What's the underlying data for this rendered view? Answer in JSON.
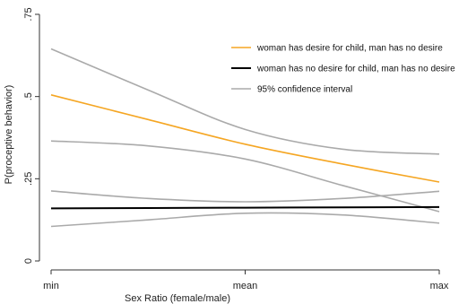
{
  "chart_data": {
    "type": "line",
    "title": "",
    "xlabel": "Sex Ratio (female/male)",
    "ylabel": "P(proceptive behavior)",
    "x": [
      0,
      0.25,
      0.5,
      0.75,
      1
    ],
    "xtick_labels": [
      "min",
      "mean",
      "max"
    ],
    "xtick_values": [
      0,
      0.5,
      1
    ],
    "ytick_labels": [
      "0",
      ".25",
      ".5",
      ".75"
    ],
    "ytick_values": [
      0,
      0.25,
      0.5,
      0.75
    ],
    "ylim": [
      0,
      0.75
    ],
    "xlim": [
      0,
      1
    ],
    "grid": false,
    "legend_position": "top-right",
    "series": [
      {
        "name": "woman has desire for child, man has no desire",
        "color": "#f5a623",
        "width": 1.6,
        "values": [
          0.505,
          0.43,
          0.355,
          0.295,
          0.24
        ]
      },
      {
        "name": "woman has no desire for child, man has no desire",
        "color": "#000000",
        "width": 2,
        "values": [
          0.16,
          0.161,
          0.162,
          0.163,
          0.164
        ]
      },
      {
        "name": "95% confidence interval",
        "color": "#aaaaaa",
        "width": 1.6,
        "values": [
          0.645,
          0.52,
          0.4,
          0.34,
          0.325
        ]
      },
      {
        "name": "",
        "color": "#aaaaaa",
        "width": 1.6,
        "values": [
          0.365,
          0.35,
          0.31,
          0.23,
          0.15
        ]
      },
      {
        "name": "",
        "color": "#aaaaaa",
        "width": 1.6,
        "values": [
          0.213,
          0.19,
          0.18,
          0.19,
          0.212
        ]
      },
      {
        "name": "",
        "color": "#aaaaaa",
        "width": 1.6,
        "values": [
          0.105,
          0.125,
          0.145,
          0.14,
          0.115
        ]
      }
    ]
  }
}
